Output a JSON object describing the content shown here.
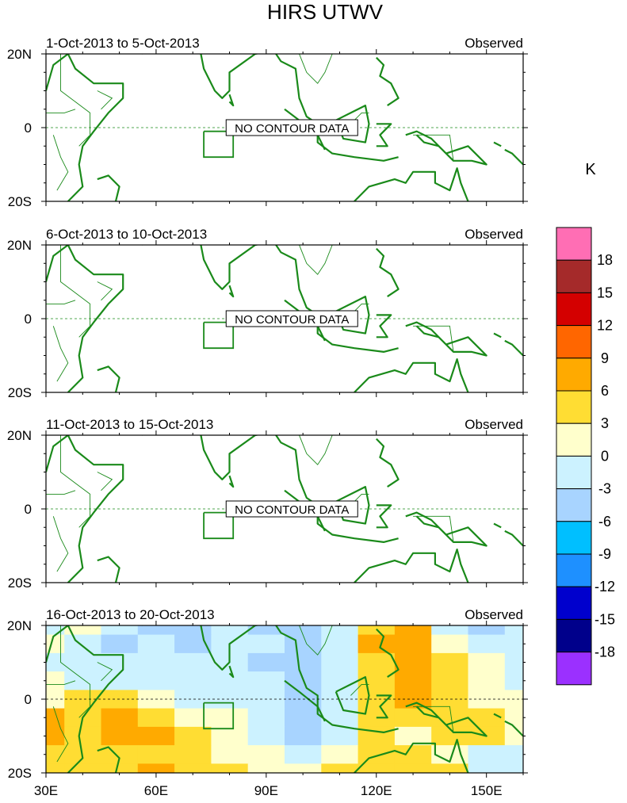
{
  "title": "HIRS UTWV",
  "colorbar": {
    "unit": "K",
    "labels": [
      "18",
      "15",
      "12",
      "9",
      "6",
      "3",
      "0",
      "-3",
      "-6",
      "-9",
      "-12",
      "-15",
      "-18"
    ],
    "colors": [
      "#ff6eb4",
      "#a52a2a",
      "#d40000",
      "#ff6600",
      "#ffaa00",
      "#ffdd33",
      "#ffffcc",
      "#ccf2ff",
      "#a8d4ff",
      "#00bfff",
      "#1e90ff",
      "#0000cd",
      "#00008b",
      "#9b30ff"
    ]
  },
  "land_color": "#1a8a1a",
  "chart_data": [
    {
      "type": "heatmap",
      "subtitle": "1-Oct-2013 to 5-Oct-2013",
      "right_label": "Observed",
      "message": "NO CONTOUR DATA",
      "x_ticks": [
        "30E",
        "60E",
        "90E",
        "120E",
        "150E"
      ],
      "y_ticks": [
        "20N",
        "0",
        "20S"
      ],
      "xlim": [
        30,
        160
      ],
      "ylim": [
        -20,
        20
      ]
    },
    {
      "type": "heatmap",
      "subtitle": "6-Oct-2013 to 10-Oct-2013",
      "right_label": "Observed",
      "message": "NO CONTOUR DATA",
      "x_ticks": [
        "30E",
        "60E",
        "90E",
        "120E",
        "150E"
      ],
      "y_ticks": [
        "20N",
        "0",
        "20S"
      ],
      "xlim": [
        30,
        160
      ],
      "ylim": [
        -20,
        20
      ]
    },
    {
      "type": "heatmap",
      "subtitle": "11-Oct-2013 to 15-Oct-2013",
      "right_label": "Observed",
      "message": "NO CONTOUR DATA",
      "x_ticks": [
        "30E",
        "60E",
        "90E",
        "120E",
        "150E"
      ],
      "y_ticks": [
        "20N",
        "0",
        "20S"
      ],
      "xlim": [
        30,
        160
      ],
      "ylim": [
        -20,
        20
      ]
    },
    {
      "type": "heatmap",
      "subtitle": "16-Oct-2013 to 20-Oct-2013",
      "right_label": "Observed",
      "message": "",
      "x_ticks": [
        "30E",
        "60E",
        "90E",
        "120E",
        "150E"
      ],
      "y_ticks": [
        "20N",
        "0",
        "20S"
      ],
      "xlim": [
        30,
        160
      ],
      "ylim": [
        -20,
        20
      ],
      "lon": [
        30,
        40,
        50,
        60,
        70,
        80,
        90,
        100,
        110,
        120,
        130,
        140,
        150,
        160
      ],
      "lat": [
        20,
        15,
        10,
        5,
        0,
        -5,
        -10,
        -15,
        -20
      ],
      "values": [
        [
          -3,
          0,
          -3,
          -6,
          -6,
          -3,
          -6,
          -6,
          -3,
          3,
          6,
          -3,
          -6,
          -3
        ],
        [
          0,
          -3,
          -6,
          -3,
          -6,
          -3,
          -3,
          -6,
          -3,
          6,
          6,
          0,
          -3,
          -3
        ],
        [
          -3,
          -3,
          -3,
          -3,
          -3,
          -3,
          -6,
          -6,
          -3,
          3,
          6,
          3,
          0,
          -3
        ],
        [
          0,
          -3,
          -3,
          -3,
          -3,
          -3,
          -3,
          -6,
          -3,
          3,
          6,
          3,
          0,
          -3
        ],
        [
          0,
          3,
          3,
          0,
          -3,
          -3,
          -3,
          -6,
          -3,
          3,
          6,
          3,
          0,
          0
        ],
        [
          6,
          3,
          6,
          3,
          0,
          0,
          -3,
          -6,
          -3,
          3,
          3,
          3,
          3,
          0
        ],
        [
          6,
          3,
          6,
          6,
          3,
          0,
          -3,
          -6,
          -3,
          3,
          0,
          3,
          3,
          0
        ],
        [
          3,
          3,
          3,
          3,
          3,
          0,
          0,
          -3,
          0,
          3,
          3,
          0,
          -3,
          -3
        ],
        [
          3,
          3,
          3,
          6,
          3,
          3,
          0,
          0,
          3,
          3,
          3,
          3,
          -3,
          -3
        ]
      ]
    }
  ]
}
